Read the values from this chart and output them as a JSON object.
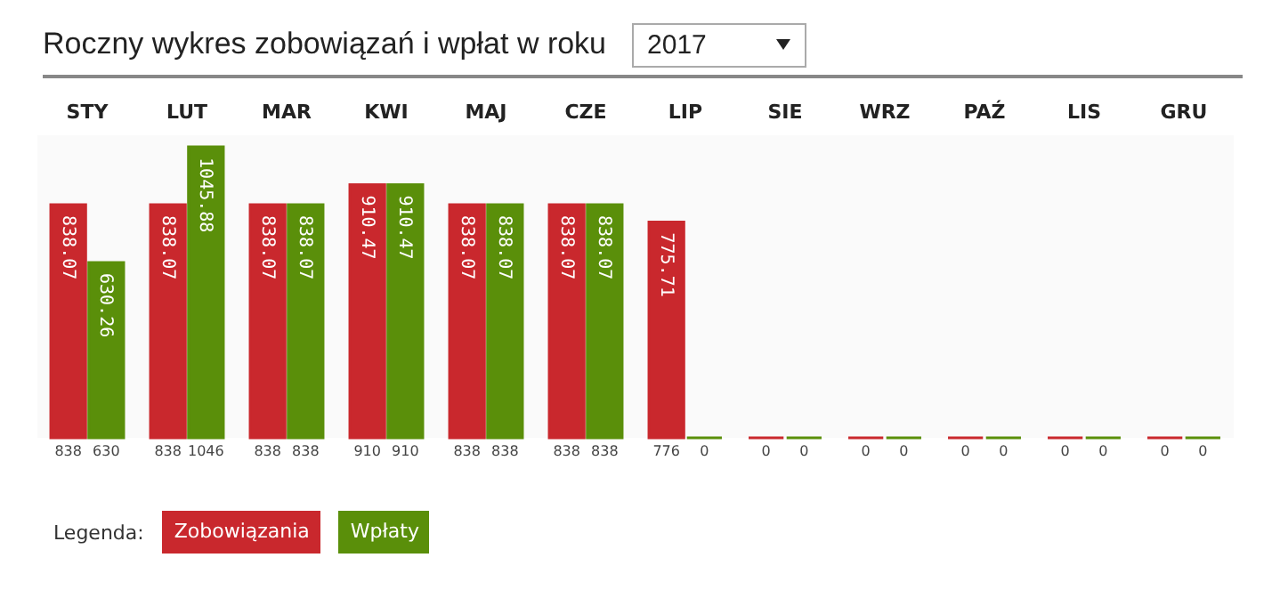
{
  "chart_data": {
    "type": "bar",
    "title": "Roczny wykres zobowiązań i wpłat w roku",
    "subtitle": "2017",
    "legend_title": "Legenda:",
    "legend": "bottom",
    "categories": [
      "STY",
      "LUT",
      "MAR",
      "KWI",
      "MAJ",
      "CZE",
      "LIP",
      "SIE",
      "WRZ",
      "PAŹ",
      "LIS",
      "GRU"
    ],
    "series": [
      {
        "name": "Zobowiązania",
        "color": "#c9282d",
        "values": [
          838.07,
          838.07,
          838.07,
          910.47,
          838.07,
          838.07,
          775.71,
          0,
          0,
          0,
          0,
          0
        ],
        "value_labels": [
          "838.07",
          "838.07",
          "838.07",
          "910.47",
          "838.07",
          "838.07",
          "775.71",
          null,
          null,
          null,
          null,
          null
        ]
      },
      {
        "name": "Wpłaty",
        "color": "#5a8f0a",
        "values": [
          630.26,
          1045.88,
          838.07,
          910.47,
          838.07,
          838.07,
          0,
          0,
          0,
          0,
          0,
          0
        ],
        "value_labels": [
          "630.26",
          "1045.88",
          "838.07",
          "910.47",
          "838.07",
          "838.07",
          null,
          null,
          null,
          null,
          null,
          null
        ]
      }
    ],
    "annotations": [
      {
        "text": "838",
        "x": "STY",
        "y": 0
      },
      {
        "text": "630",
        "x": "STY",
        "y": 0
      },
      {
        "text": "838",
        "x": "LUT",
        "y": 0
      },
      {
        "text": "1046",
        "x": "LUT",
        "y": 0
      },
      {
        "text": "838",
        "x": "MAR",
        "y": 0
      },
      {
        "text": "838",
        "x": "MAR",
        "y": 0
      },
      {
        "text": "910",
        "x": "KWI",
        "y": 0
      },
      {
        "text": "910",
        "x": "KWI",
        "y": 0
      },
      {
        "text": "838",
        "x": "MAJ",
        "y": 0
      },
      {
        "text": "838",
        "x": "MAJ",
        "y": 0
      },
      {
        "text": "838",
        "x": "CZE",
        "y": 0
      },
      {
        "text": "838",
        "x": "CZE",
        "y": 0
      },
      {
        "text": "776",
        "x": "LIP",
        "y": 0
      },
      {
        "text": "0",
        "x": "LIP",
        "y": 0
      },
      {
        "text": "0",
        "x": "SIE",
        "y": 0
      },
      {
        "text": "0",
        "x": "SIE",
        "y": 0
      },
      {
        "text": "0",
        "x": "WRZ",
        "y": 0
      },
      {
        "text": "0",
        "x": "WRZ",
        "y": 0
      },
      {
        "text": "0",
        "x": "PAŹ",
        "y": 0
      },
      {
        "text": "0",
        "x": "PAŹ",
        "y": 0
      },
      {
        "text": "0",
        "x": "LIS",
        "y": 0
      },
      {
        "text": "0",
        "x": "LIS",
        "y": 0
      },
      {
        "text": "0",
        "x": "GRU",
        "y": 0
      },
      {
        "text": "0",
        "x": "GRU",
        "y": 0
      }
    ]
  }
}
